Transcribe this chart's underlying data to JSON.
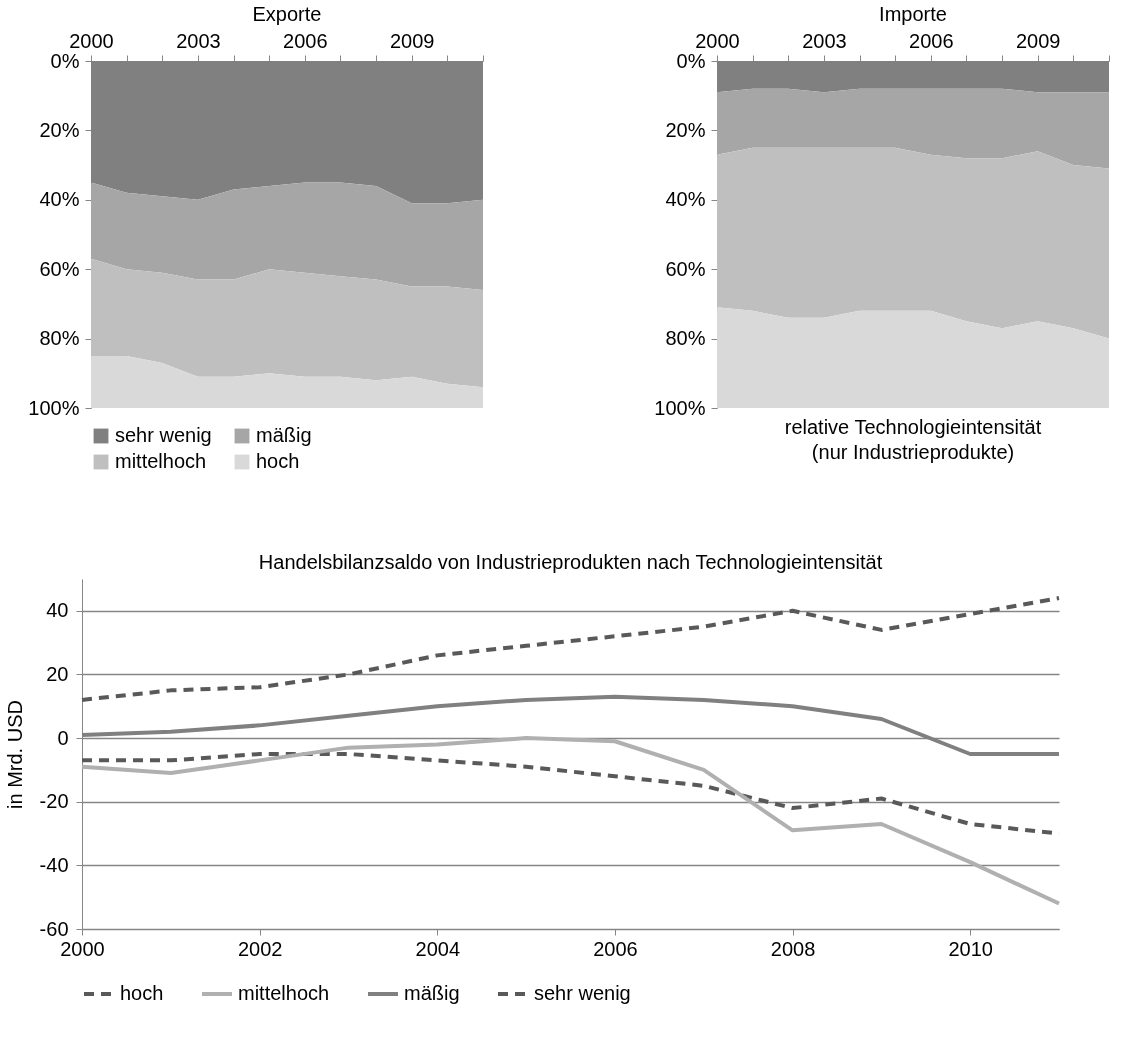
{
  "chart_data": [
    {
      "type": "area",
      "title": "Exporte",
      "stacked": true,
      "x": [
        2000,
        2001,
        2002,
        2003,
        2004,
        2005,
        2006,
        2007,
        2008,
        2009,
        2010,
        2011
      ],
      "xlim": [
        2000,
        2011
      ],
      "xticks": [
        2000,
        {
          "value": 2001,
          "label": null
        },
        {
          "value": 2002,
          "label": null
        },
        2003,
        {
          "value": 2004,
          "label": null
        },
        {
          "value": 2005,
          "label": null
        },
        2006,
        {
          "value": 2007,
          "label": null
        },
        {
          "value": 2008,
          "label": null
        },
        2009,
        {
          "value": 2010,
          "label": null
        },
        {
          "value": 2011,
          "label": null
        }
      ],
      "ylim": [
        100,
        0
      ],
      "yticks": [
        {
          "value": 0,
          "label": "0%"
        },
        {
          "value": 20,
          "label": "20%"
        },
        {
          "value": 40,
          "label": "40%"
        },
        {
          "value": 60,
          "label": "60%"
        },
        {
          "value": 80,
          "label": "80%"
        },
        {
          "value": 100,
          "label": "100%"
        }
      ],
      "legend": "bottom",
      "series": [
        {
          "name": "sehr wenig",
          "color": "#808080",
          "values": [
            35,
            38,
            39,
            40,
            37,
            36,
            35,
            35,
            36,
            41,
            41,
            40
          ]
        },
        {
          "name": "mäßig",
          "color": "#a6a6a6",
          "values": [
            22,
            22,
            22,
            23,
            26,
            24,
            26,
            27,
            27,
            24,
            24,
            26
          ]
        },
        {
          "name": "mittelhoch",
          "color": "#bfbfbf",
          "values": [
            28,
            25,
            26,
            28,
            28,
            30,
            30,
            29,
            29,
            26,
            28,
            28
          ]
        },
        {
          "name": "hoch",
          "color": "#d9d9d9",
          "values": [
            15,
            15,
            13,
            9,
            9,
            10,
            9,
            9,
            8,
            9,
            7,
            6
          ]
        }
      ]
    },
    {
      "type": "area",
      "title": "Importe",
      "stacked": true,
      "x": [
        2000,
        2001,
        2002,
        2003,
        2004,
        2005,
        2006,
        2007,
        2008,
        2009,
        2010,
        2011
      ],
      "xlim": [
        2000,
        2011
      ],
      "xticks": [
        2000,
        {
          "value": 2001,
          "label": null
        },
        {
          "value": 2002,
          "label": null
        },
        2003,
        {
          "value": 2004,
          "label": null
        },
        {
          "value": 2005,
          "label": null
        },
        2006,
        {
          "value": 2007,
          "label": null
        },
        {
          "value": 2008,
          "label": null
        },
        2009,
        {
          "value": 2010,
          "label": null
        },
        {
          "value": 2011,
          "label": null
        }
      ],
      "ylim": [
        100,
        0
      ],
      "yticks": [
        {
          "value": 0,
          "label": "0%"
        },
        {
          "value": 20,
          "label": "20%"
        },
        {
          "value": 40,
          "label": "40%"
        },
        {
          "value": 60,
          "label": "60%"
        },
        {
          "value": 80,
          "label": "80%"
        },
        {
          "value": 100,
          "label": "100%"
        }
      ],
      "annotations": [
        "relative Technologieintensität",
        "(nur Industrieprodukte)"
      ],
      "series": [
        {
          "color": "#808080",
          "values": [
            9,
            8,
            8,
            9,
            8,
            8,
            8,
            8,
            8,
            9,
            9,
            9
          ]
        },
        {
          "color": "#a6a6a6",
          "values": [
            18,
            17,
            17,
            16,
            17,
            17,
            19,
            20,
            20,
            17,
            21,
            22
          ]
        },
        {
          "color": "#bfbfbf",
          "values": [
            44,
            47,
            49,
            49,
            47,
            47,
            45,
            47,
            49,
            49,
            47,
            49
          ]
        },
        {
          "color": "#d9d9d9",
          "values": [
            29,
            28,
            26,
            26,
            28,
            28,
            28,
            25,
            23,
            25,
            23,
            20
          ]
        }
      ]
    },
    {
      "type": "line",
      "title": "Handelsbilanzsaldo von Industrieprodukten nach Technologieintensität",
      "ylabel": "in Mrd. USD",
      "x": [
        2000,
        2001,
        2002,
        2003,
        2004,
        2005,
        2006,
        2007,
        2008,
        2009,
        2010,
        2011
      ],
      "xlim": [
        2000,
        2011
      ],
      "xticks": [
        2000,
        2002,
        2004,
        2006,
        2008,
        2010
      ],
      "ylim": [
        -60,
        50
      ],
      "yticks": [
        -60,
        -40,
        -20,
        0,
        20,
        40
      ],
      "grid": "y",
      "legend": "bottom",
      "series": [
        {
          "name": "hoch",
          "color": "#595959",
          "line_style": "dashed",
          "values": [
            -7,
            -7,
            -5,
            -5,
            -7,
            -9,
            -12,
            -15,
            -22,
            -19,
            -27,
            -30
          ]
        },
        {
          "name": "mittelhoch",
          "color": "#b0b0b0",
          "line_style": "solid",
          "values": [
            -9,
            -11,
            -7,
            -3,
            -2,
            0,
            -1,
            -10,
            -29,
            -27,
            -39,
            -52
          ]
        },
        {
          "name": "mäßig",
          "color": "#808080",
          "line_style": "solid",
          "values": [
            1,
            2,
            4,
            7,
            10,
            12,
            13,
            12,
            10,
            6,
            -5,
            -5
          ]
        },
        {
          "name": "sehr wenig",
          "color": "#595959",
          "line_style": "dashed",
          "values": [
            12,
            15,
            16,
            20,
            26,
            29,
            32,
            35,
            40,
            34,
            39,
            44
          ]
        }
      ]
    }
  ]
}
